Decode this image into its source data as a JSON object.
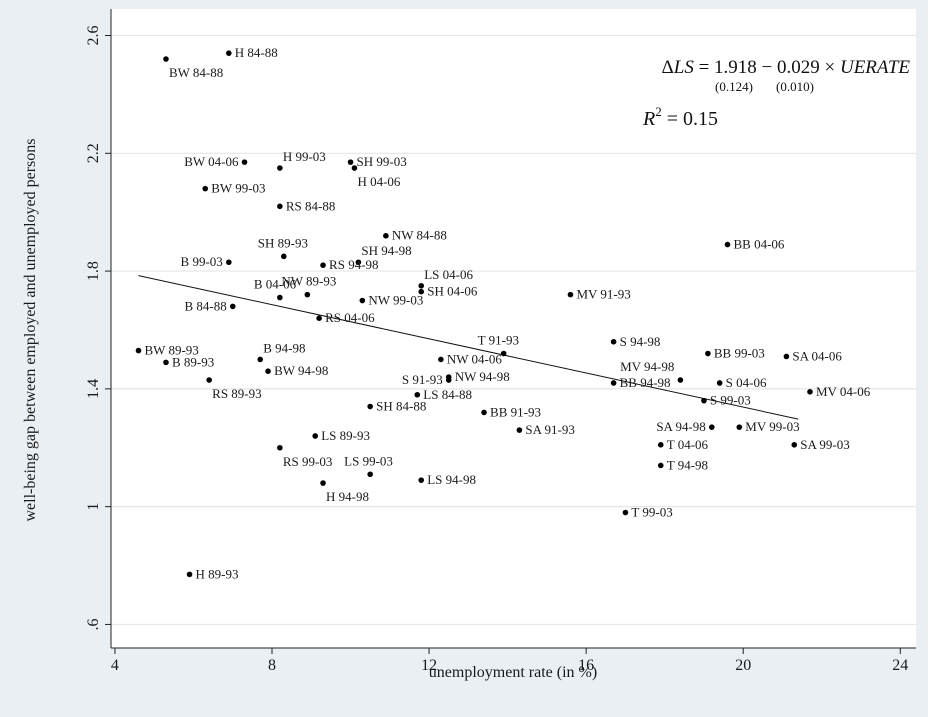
{
  "chart_data": {
    "type": "scatter",
    "xlabel": "unemployment rate (in %)",
    "ylabel": "well-being gap between employed and unemployed persons",
    "xlim": [
      3.9,
      24.4
    ],
    "ylim": [
      0.52,
      2.69
    ],
    "xticks": [
      {
        "value": 4,
        "label": "4"
      },
      {
        "value": 8,
        "label": "8"
      },
      {
        "value": 12,
        "label": "12"
      },
      {
        "value": 16,
        "label": "16"
      },
      {
        "value": 20,
        "label": "20"
      },
      {
        "value": 24,
        "label": "24"
      }
    ],
    "yticks": [
      {
        "value": 0.6,
        "label": ".6"
      },
      {
        "value": 1.0,
        "label": "1"
      },
      {
        "value": 1.4,
        "label": "1.4"
      },
      {
        "value": 1.8,
        "label": "1.8"
      },
      {
        "value": 2.2,
        "label": "2.2"
      },
      {
        "value": 2.6,
        "label": "2.6"
      }
    ],
    "grid": true,
    "fit_line": {
      "intercept": 1.918,
      "slope": -0.029,
      "x_range": [
        4.6,
        21.4
      ]
    },
    "annotation": {
      "equation_delta": "Δ",
      "equation_lhs": "LS",
      "equation_mid": " = 1.918 − 0.029 × ",
      "equation_var": "UERATE",
      "se_intercept": "(0.124)",
      "se_slope": "(0.010)",
      "r2_symbol": "R",
      "r2_exp": "2",
      "r2_value": " = 0.15"
    },
    "points": [
      {
        "label": "H 84-88",
        "x": 6.9,
        "y": 2.54,
        "pos": "right"
      },
      {
        "label": "BW 84-88",
        "x": 5.3,
        "y": 2.52,
        "pos": "below"
      },
      {
        "label": "BW 04-06",
        "x": 7.3,
        "y": 2.17,
        "pos": "left"
      },
      {
        "label": "H 99-03",
        "x": 8.2,
        "y": 2.15,
        "pos": "above-right"
      },
      {
        "label": "SH 99-03",
        "x": 10.0,
        "y": 2.17,
        "pos": "right"
      },
      {
        "label": "H 04-06",
        "x": 10.1,
        "y": 2.15,
        "pos": "below"
      },
      {
        "label": "BW 99-03",
        "x": 6.3,
        "y": 2.08,
        "pos": "right"
      },
      {
        "label": "RS 84-88",
        "x": 8.2,
        "y": 2.02,
        "pos": "right"
      },
      {
        "label": "NW 84-88",
        "x": 10.9,
        "y": 1.92,
        "pos": "right"
      },
      {
        "label": "BB 04-06",
        "x": 19.6,
        "y": 1.89,
        "pos": "right"
      },
      {
        "label": "SH 89-93",
        "x": 8.3,
        "y": 1.85,
        "pos": "above"
      },
      {
        "label": "SH 94-98",
        "x": 10.2,
        "y": 1.83,
        "pos": "above-right"
      },
      {
        "label": "B 99-03",
        "x": 6.9,
        "y": 1.83,
        "pos": "left"
      },
      {
        "label": "RS 94-98",
        "x": 9.3,
        "y": 1.82,
        "pos": "right"
      },
      {
        "label": "LS 04-06",
        "x": 11.8,
        "y": 1.75,
        "pos": "above-right"
      },
      {
        "label": "SH 04-06",
        "x": 11.8,
        "y": 1.73,
        "pos": "right"
      },
      {
        "label": "MV 91-93",
        "x": 15.6,
        "y": 1.72,
        "pos": "right"
      },
      {
        "label": "NW 89-93",
        "x": 8.9,
        "y": 1.72,
        "pos": "above"
      },
      {
        "label": "B 04-06",
        "x": 8.2,
        "y": 1.71,
        "pos": "above"
      },
      {
        "label": "NW 99-03",
        "x": 10.3,
        "y": 1.7,
        "pos": "right"
      },
      {
        "label": "B 84-88",
        "x": 7.0,
        "y": 1.68,
        "pos": "left"
      },
      {
        "label": "RS 04-06",
        "x": 9.2,
        "y": 1.64,
        "pos": "right"
      },
      {
        "label": "S 94-98",
        "x": 16.7,
        "y": 1.56,
        "pos": "right"
      },
      {
        "label": "BW 89-93",
        "x": 4.6,
        "y": 1.53,
        "pos": "right"
      },
      {
        "label": "T 91-93",
        "x": 13.9,
        "y": 1.52,
        "pos": "above"
      },
      {
        "label": "BB 99-03",
        "x": 19.1,
        "y": 1.52,
        "pos": "right"
      },
      {
        "label": "SA 04-06",
        "x": 21.1,
        "y": 1.51,
        "pos": "right"
      },
      {
        "label": "NW 04-06",
        "x": 12.3,
        "y": 1.5,
        "pos": "right"
      },
      {
        "label": "B 94-98",
        "x": 7.7,
        "y": 1.5,
        "pos": "above-right"
      },
      {
        "label": "B 89-93",
        "x": 5.3,
        "y": 1.49,
        "pos": "right"
      },
      {
        "label": "BW 94-98",
        "x": 7.9,
        "y": 1.46,
        "pos": "right"
      },
      {
        "label": "NW 94-98",
        "x": 12.5,
        "y": 1.44,
        "pos": "right"
      },
      {
        "label": "S 91-93",
        "x": 12.5,
        "y": 1.43,
        "pos": "left"
      },
      {
        "label": "MV 94-98",
        "x": 18.4,
        "y": 1.43,
        "pos": "above-left"
      },
      {
        "label": "RS 89-93",
        "x": 6.4,
        "y": 1.43,
        "pos": "below"
      },
      {
        "label": "BB 94-98",
        "x": 16.7,
        "y": 1.42,
        "pos": "right"
      },
      {
        "label": "S 04-06",
        "x": 19.4,
        "y": 1.42,
        "pos": "right"
      },
      {
        "label": "MV 04-06",
        "x": 21.7,
        "y": 1.39,
        "pos": "right"
      },
      {
        "label": "LS 84-88",
        "x": 11.7,
        "y": 1.38,
        "pos": "right"
      },
      {
        "label": "S 99-03",
        "x": 19.0,
        "y": 1.36,
        "pos": "right"
      },
      {
        "label": "SH 84-88",
        "x": 10.5,
        "y": 1.34,
        "pos": "right"
      },
      {
        "label": "BB 91-93",
        "x": 13.4,
        "y": 1.32,
        "pos": "right"
      },
      {
        "label": "SA 94-98",
        "x": 19.2,
        "y": 1.27,
        "pos": "left"
      },
      {
        "label": "MV 99-03",
        "x": 19.9,
        "y": 1.27,
        "pos": "right"
      },
      {
        "label": "SA 91-93",
        "x": 14.3,
        "y": 1.26,
        "pos": "right"
      },
      {
        "label": "LS 89-93",
        "x": 9.1,
        "y": 1.24,
        "pos": "right"
      },
      {
        "label": "SA 99-03",
        "x": 21.3,
        "y": 1.21,
        "pos": "right"
      },
      {
        "label": "T 04-06",
        "x": 17.9,
        "y": 1.21,
        "pos": "right"
      },
      {
        "label": "RS 99-03",
        "x": 8.2,
        "y": 1.2,
        "pos": "below"
      },
      {
        "label": "T 94-98",
        "x": 17.9,
        "y": 1.14,
        "pos": "right"
      },
      {
        "label": "LS 99-03",
        "x": 10.5,
        "y": 1.11,
        "pos": "above"
      },
      {
        "label": "LS 94-98",
        "x": 11.8,
        "y": 1.09,
        "pos": "right"
      },
      {
        "label": "H 94-98",
        "x": 9.3,
        "y": 1.08,
        "pos": "below"
      },
      {
        "label": "T 99-03",
        "x": 17.0,
        "y": 0.98,
        "pos": "right"
      },
      {
        "label": "H 89-93",
        "x": 5.9,
        "y": 0.77,
        "pos": "right"
      }
    ]
  }
}
